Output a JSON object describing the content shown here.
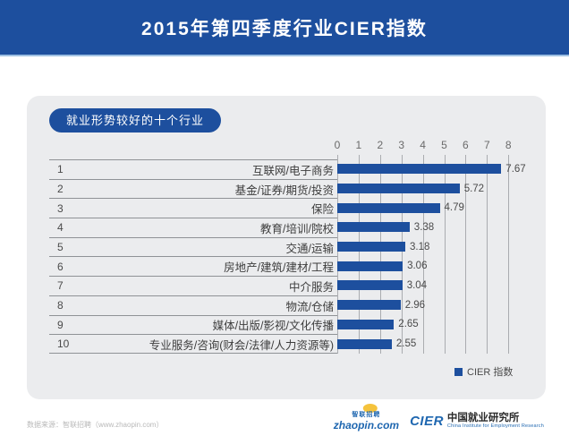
{
  "header": {
    "title": "2015年第四季度行业CIER指数"
  },
  "badge": {
    "label": "就业形势较好的十个行业"
  },
  "chart_data": {
    "type": "bar",
    "orientation": "horizontal",
    "title": "就业形势较好的十个行业",
    "ranks": [
      "1",
      "2",
      "3",
      "4",
      "5",
      "6",
      "7",
      "8",
      "9",
      "10"
    ],
    "categories": [
      "互联网/电子商务",
      "基金/证券/期货/投资",
      "保险",
      "教育/培训/院校",
      "交通/运输",
      "房地产/建筑/建材/工程",
      "中介服务",
      "物流/仓储",
      "媒体/出版/影视/文化传播",
      "专业服务/咨询(财会/法律/人力资源等)"
    ],
    "values": [
      7.67,
      5.72,
      4.79,
      3.38,
      3.18,
      3.06,
      3.04,
      2.96,
      2.65,
      2.55
    ],
    "value_labels": [
      "7.67",
      "5.72",
      "4.79",
      "3.38",
      "3.18",
      "3.06",
      "3.04",
      "2.96",
      "2.65",
      "2.55"
    ],
    "axis": {
      "min": 0,
      "max": 8,
      "ticks": [
        0,
        1,
        2,
        3,
        4,
        5,
        6,
        7,
        8
      ],
      "position": "top"
    },
    "legend": {
      "label": "CIER 指数",
      "position": "bottom-right"
    },
    "bar_color": "#1d4f9e",
    "grid": true
  },
  "footer": {
    "source": "数据来源：智联招聘（www.zhaopin.com）",
    "logos": {
      "zhaopin": {
        "cn": "智联招聘",
        "en": "zhaopin.com"
      },
      "cier": {
        "abbr": "CIER",
        "cn": "中国就业研究所",
        "en": "China Institute for Employment Research"
      }
    }
  },
  "colors": {
    "header_bg": "#1d4f9e",
    "header_underline": "#9fc1e3",
    "card_bg": "#ebecee",
    "bar": "#1d4f9e",
    "gridline": "#aaacb0",
    "row_line": "#8f9296"
  }
}
